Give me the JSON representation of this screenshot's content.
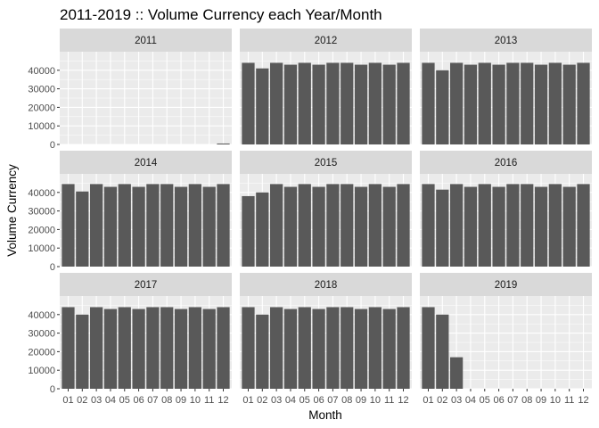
{
  "chart_data": {
    "type": "bar",
    "title": "2011-2019 :: Volume Currency each Year/Month",
    "xlabel": "Month",
    "ylabel": "Volume Currency",
    "ylim": [
      0,
      50000
    ],
    "yticks": [
      0,
      10000,
      20000,
      30000,
      40000
    ],
    "ytick_labels": [
      "0",
      "10000",
      "20000",
      "30000",
      "40000"
    ],
    "categories": [
      "01",
      "02",
      "03",
      "04",
      "05",
      "06",
      "07",
      "08",
      "09",
      "10",
      "11",
      "12"
    ],
    "facet_layout": "3 columns x 3 rows, shared axes",
    "grid": true,
    "colors": {
      "bar": "#595959",
      "panel": "#ebebeb",
      "grid": "#ffffff",
      "strip": "#d9d9d9"
    },
    "facets": [
      {
        "name": "2011",
        "values": [
          0,
          0,
          0,
          0,
          0,
          0,
          0,
          0,
          0,
          0,
          0,
          500
        ]
      },
      {
        "name": "2012",
        "values": [
          44000,
          41000,
          44000,
          43000,
          44000,
          43000,
          44000,
          44000,
          43000,
          44000,
          43000,
          44000
        ]
      },
      {
        "name": "2013",
        "values": [
          44000,
          40000,
          44000,
          43000,
          44000,
          43000,
          44000,
          44000,
          43000,
          44000,
          43000,
          44000
        ]
      },
      {
        "name": "2014",
        "values": [
          44500,
          40500,
          44500,
          43000,
          44500,
          43000,
          44500,
          44500,
          43000,
          44500,
          43000,
          44500
        ]
      },
      {
        "name": "2015",
        "values": [
          38000,
          40000,
          44500,
          43000,
          44500,
          43000,
          44500,
          44500,
          43000,
          44500,
          43000,
          44500
        ]
      },
      {
        "name": "2016",
        "values": [
          44500,
          41500,
          44500,
          43000,
          44500,
          43000,
          44500,
          44500,
          43000,
          44500,
          43000,
          44500
        ]
      },
      {
        "name": "2017",
        "values": [
          44000,
          40000,
          44000,
          43000,
          44000,
          43000,
          44000,
          44000,
          43000,
          44000,
          43000,
          44000
        ]
      },
      {
        "name": "2018",
        "values": [
          44000,
          40000,
          44000,
          43000,
          44000,
          43000,
          44000,
          44000,
          43000,
          44000,
          43000,
          44000
        ]
      },
      {
        "name": "2019",
        "values": [
          44000,
          40000,
          17000,
          0,
          0,
          0,
          0,
          0,
          0,
          0,
          0,
          0
        ]
      }
    ]
  }
}
